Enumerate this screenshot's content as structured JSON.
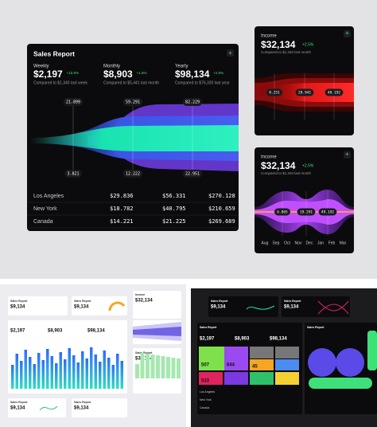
{
  "main": {
    "title": "Sales Report",
    "metrics": [
      {
        "label": "Weekly",
        "value": "$2,197",
        "change": "+10.6%",
        "note": "Compared to $1,340 last week"
      },
      {
        "label": "Monthly",
        "value": "$8,903",
        "change": "+1.6%",
        "note": "Compared to $5,441 last month"
      },
      {
        "label": "Yearly",
        "value": "$98,134",
        "change": "+2.5%",
        "note": "Compared to $76,330 last year"
      }
    ],
    "funnel_top": [
      "21.899",
      "59.291",
      "82.229"
    ],
    "funnel_bottom": [
      "3.821",
      "12.222",
      "22.951"
    ],
    "table": [
      [
        "Los Angeles",
        "$29.836",
        "$56.331",
        "$270.128"
      ],
      [
        "New York",
        "$18.782",
        "$40.795",
        "$210.659"
      ],
      [
        "Canada",
        "$14.221",
        "$21.225",
        "$269.689"
      ]
    ]
  },
  "income_cards": [
    {
      "label": "Income",
      "value": "$32,134",
      "change": "+2.5%",
      "note": "Compared to $1,340 last month",
      "markers": [
        "8.251",
        "28.941",
        "48.192"
      ]
    },
    {
      "label": "Income",
      "value": "$32,134",
      "change": "+2.5%",
      "note": "Compared to $1,340 last month",
      "markers": [
        "6.865",
        "19.291",
        "49.192"
      ]
    }
  ],
  "months": [
    "Aug",
    "Sep",
    "Oct",
    "Nov",
    "Dec",
    "Jan",
    "Feb",
    "Mar"
  ],
  "light_thumbs": [
    {
      "title": "Sales Report",
      "value": "$9,134"
    },
    {
      "title": "Sales Report",
      "value": "$9,134"
    },
    {
      "title": "Income",
      "value": "$32,134"
    },
    {
      "title": "Sales Report",
      "value": "$32,134"
    },
    {
      "title": "Sales Report",
      "value": "$9,134"
    },
    {
      "title": "Sales Report",
      "value": "$9,134"
    }
  ],
  "light_metrics": [
    "$2,197",
    "$8,903",
    "$98,134"
  ],
  "dark_thumbs": [
    {
      "title": "Sales Report",
      "value": "$9,134"
    },
    {
      "title": "Sales Report",
      "value": "$9,134"
    },
    {
      "title": "Sales Report",
      "value": ""
    },
    {
      "title": "Sales Report",
      "value": ""
    }
  ],
  "dark_metrics": [
    "$2,197",
    "$8,903",
    "$98,134"
  ],
  "dark_tiles": [
    "507",
    "644",
    "45",
    "533"
  ],
  "dark_cities": [
    "Los Angeles",
    "New York",
    "Canada"
  ]
}
